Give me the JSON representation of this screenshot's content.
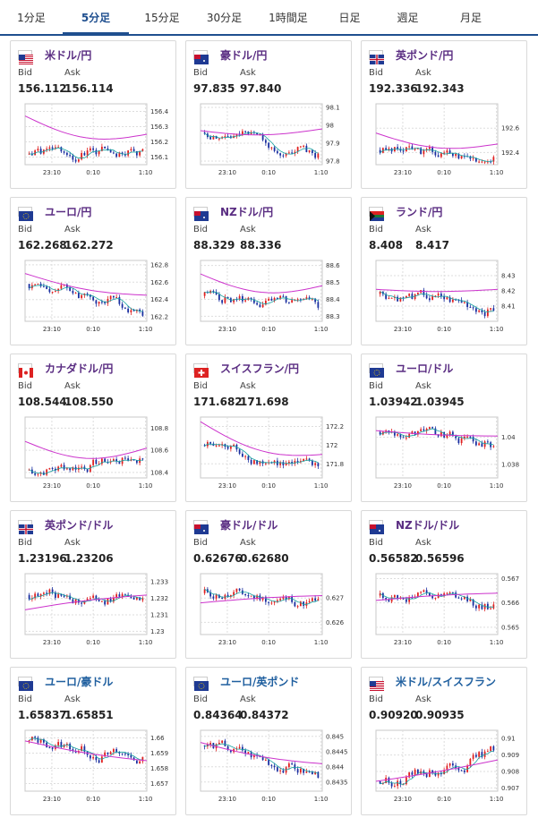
{
  "tabs": [
    "1分足",
    "5分足",
    "15分足",
    "30分足",
    "1時間足",
    "日足",
    "週足",
    "月足"
  ],
  "active_tab": "5分足",
  "labels": {
    "bid": "Bid",
    "ask": "Ask"
  },
  "cards": [
    {
      "pair": "米ドル/円",
      "flag": "us-jp-flag",
      "bid": "156.112",
      "ask": "156.114",
      "chart_data": {
        "type": "candlestick",
        "x_ticks": [
          "23:10",
          "0:10",
          "1:10"
        ],
        "y_ticks": [
          "156.4",
          "156.3",
          "156.2",
          "156.1"
        ],
        "ylim": [
          156.05,
          156.45
        ],
        "ma_start": 156.37,
        "ma_end": 156.25,
        "start": 156.12,
        "end": 156.13,
        "seed": 1
      }
    },
    {
      "pair": "豪ドル/円",
      "flag": "au-jp-flag",
      "bid": "97.835",
      "ask": "97.840",
      "chart_data": {
        "type": "candlestick",
        "x_ticks": [
          "23:10",
          "0:10",
          "1:10"
        ],
        "y_ticks": [
          "98.1",
          "98",
          "97.9",
          "97.8"
        ],
        "ylim": [
          97.78,
          98.12
        ],
        "ma_start": 97.97,
        "ma_end": 97.98,
        "start": 97.96,
        "end": 97.84,
        "seed": 2
      }
    },
    {
      "pair": "英ポンド/円",
      "flag": "gb-jp-flag",
      "bid": "192.336",
      "ask": "192.343",
      "chart_data": {
        "type": "candlestick",
        "x_ticks": [
          "23:10",
          "0:10",
          "1:10"
        ],
        "y_ticks": [
          "192.6",
          "192.4"
        ],
        "ylim": [
          192.3,
          192.8
        ],
        "ma_start": 192.56,
        "ma_end": 192.47,
        "start": 192.42,
        "end": 192.34,
        "seed": 3
      }
    },
    {
      "pair": "ユーロ/円",
      "flag": "eu-jp-flag",
      "bid": "162.268",
      "ask": "162.272",
      "chart_data": {
        "type": "candlestick",
        "x_ticks": [
          "23:10",
          "0:10",
          "1:10"
        ],
        "y_ticks": [
          "162.8",
          "162.6",
          "162.4",
          "162.2"
        ],
        "ylim": [
          162.15,
          162.85
        ],
        "ma_start": 162.7,
        "ma_end": 162.45,
        "start": 162.58,
        "end": 162.27,
        "seed": 4
      }
    },
    {
      "pair": "NZドル/円",
      "flag": "nz-jp-flag",
      "bid": "88.329",
      "ask": "88.336",
      "chart_data": {
        "type": "candlestick",
        "x_ticks": [
          "23:10",
          "0:10",
          "1:10"
        ],
        "y_ticks": [
          "88.6",
          "88.5",
          "88.4",
          "88.3"
        ],
        "ylim": [
          88.27,
          88.63
        ],
        "ma_start": 88.55,
        "ma_end": 88.48,
        "start": 88.42,
        "end": 88.33,
        "seed": 5
      }
    },
    {
      "pair": "ランド/円",
      "flag": "za-jp-flag",
      "bid": "8.408",
      "ask": "8.417",
      "chart_data": {
        "type": "candlestick",
        "x_ticks": [
          "23:10",
          "0:10",
          "1:10"
        ],
        "y_ticks": [
          "8.43",
          "8.42",
          "8.41"
        ],
        "ylim": [
          8.4,
          8.44
        ],
        "ma_start": 8.421,
        "ma_end": 8.421,
        "start": 8.418,
        "end": 8.408,
        "seed": 6
      }
    },
    {
      "pair": "カナダドル/円",
      "flag": "ca-jp-flag",
      "bid": "108.544",
      "ask": "108.550",
      "chart_data": {
        "type": "candlestick",
        "x_ticks": [
          "23:10",
          "0:10",
          "1:10"
        ],
        "y_ticks": [
          "108.8",
          "108.6",
          "108.4"
        ],
        "ylim": [
          108.35,
          108.9
        ],
        "ma_start": 108.68,
        "ma_end": 108.62,
        "start": 108.42,
        "end": 108.55,
        "seed": 7
      }
    },
    {
      "pair": "スイスフラン/円",
      "flag": "ch-jp-flag",
      "bid": "171.682",
      "ask": "171.698",
      "chart_data": {
        "type": "candlestick",
        "x_ticks": [
          "23:10",
          "0:10",
          "1:10"
        ],
        "y_ticks": [
          "172.2",
          "172",
          "171.8"
        ],
        "ylim": [
          171.65,
          172.3
        ],
        "ma_start": 172.25,
        "ma_end": 171.9,
        "start": 172.0,
        "end": 171.69,
        "seed": 8
      }
    },
    {
      "pair": "ユーロ/ドル",
      "flag": "eu-us-flag",
      "bid": "1.03942",
      "ask": "1.03945",
      "chart_data": {
        "type": "candlestick",
        "x_ticks": [
          "23:10",
          "0:10",
          "1:10"
        ],
        "y_ticks": [
          "1.04",
          "1.038"
        ],
        "ylim": [
          1.037,
          1.0415
        ],
        "ma_start": 1.0405,
        "ma_end": 1.0401,
        "start": 1.0404,
        "end": 1.0394,
        "seed": 9
      }
    },
    {
      "pair": "英ポンド/ドル",
      "flag": "gb-us-flag",
      "bid": "1.23196",
      "ask": "1.23206",
      "chart_data": {
        "type": "candlestick",
        "x_ticks": [
          "23:10",
          "0:10",
          "1:10"
        ],
        "y_ticks": [
          "1.233",
          "1.232",
          "1.231",
          "1.23"
        ],
        "ylim": [
          1.2298,
          1.2335
        ],
        "ma_start": 1.2313,
        "ma_end": 1.2322,
        "start": 1.2322,
        "end": 1.232,
        "seed": 10
      }
    },
    {
      "pair": "豪ドル/ドル",
      "flag": "au-us-flag",
      "bid": "0.62676",
      "ask": "0.62680",
      "chart_data": {
        "type": "candlestick",
        "x_ticks": [
          "23:10",
          "0:10",
          "1:10"
        ],
        "y_ticks": [
          "0.627",
          "0.626"
        ],
        "ylim": [
          0.6255,
          0.628
        ],
        "ma_start": 0.6268,
        "ma_end": 0.6271,
        "start": 0.6272,
        "end": 0.62676,
        "seed": 11
      }
    },
    {
      "pair": "NZドル/ドル",
      "flag": "nz-us-flag",
      "bid": "0.56582",
      "ask": "0.56596",
      "chart_data": {
        "type": "candlestick",
        "x_ticks": [
          "23:10",
          "0:10",
          "1:10"
        ],
        "y_ticks": [
          "0.567",
          "0.566",
          "0.565"
        ],
        "ylim": [
          0.5647,
          0.5672
        ],
        "ma_start": 0.5661,
        "ma_end": 0.5664,
        "start": 0.5663,
        "end": 0.56582,
        "seed": 12
      }
    },
    {
      "pair": "ユーロ/豪ドル",
      "flag": "eu-au-flag",
      "bid": "1.65837",
      "ask": "1.65851",
      "chart_data": {
        "type": "candlestick",
        "x_ticks": [
          "23:10",
          "0:10",
          "1:10"
        ],
        "y_ticks": [
          "1.66",
          "1.659",
          "1.658",
          "1.657"
        ],
        "ylim": [
          1.6565,
          1.6605
        ],
        "ma_start": 1.6598,
        "ma_end": 1.6585,
        "start": 1.6598,
        "end": 1.6584,
        "seed": 13
      }
    },
    {
      "pair": "ユーロ/英ポンド",
      "flag": "eu-gb-flag",
      "bid": "0.84364",
      "ask": "0.84372",
      "chart_data": {
        "type": "candlestick",
        "x_ticks": [
          "23:10",
          "0:10",
          "1:10"
        ],
        "y_ticks": [
          "0.845",
          "0.8445",
          "0.844",
          "0.8435"
        ],
        "ylim": [
          0.8432,
          0.8452
        ],
        "ma_start": 0.8448,
        "ma_end": 0.8441,
        "start": 0.8447,
        "end": 0.8436,
        "seed": 14
      }
    },
    {
      "pair": "米ドル/スイスフラン",
      "flag": "us-ch-flag",
      "bid": "0.90920",
      "ask": "0.90935",
      "chart_data": {
        "type": "candlestick",
        "x_ticks": [
          "23:10",
          "0:10",
          "1:10"
        ],
        "y_ticks": [
          "0.91",
          "0.909",
          "0.908",
          "0.907"
        ],
        "ylim": [
          0.9068,
          0.9105
        ],
        "ma_start": 0.9074,
        "ma_end": 0.9087,
        "start": 0.9074,
        "end": 0.9093,
        "seed": 15
      }
    }
  ],
  "colors": {
    "up": "#e02020",
    "down": "#1a2fa0",
    "ma": "#cc33cc",
    "ma2": "#17a2a0",
    "pair_purple": "#5a2d82",
    "pair_blue": "#1f5f9f",
    "accent": "#1f4f8f"
  }
}
